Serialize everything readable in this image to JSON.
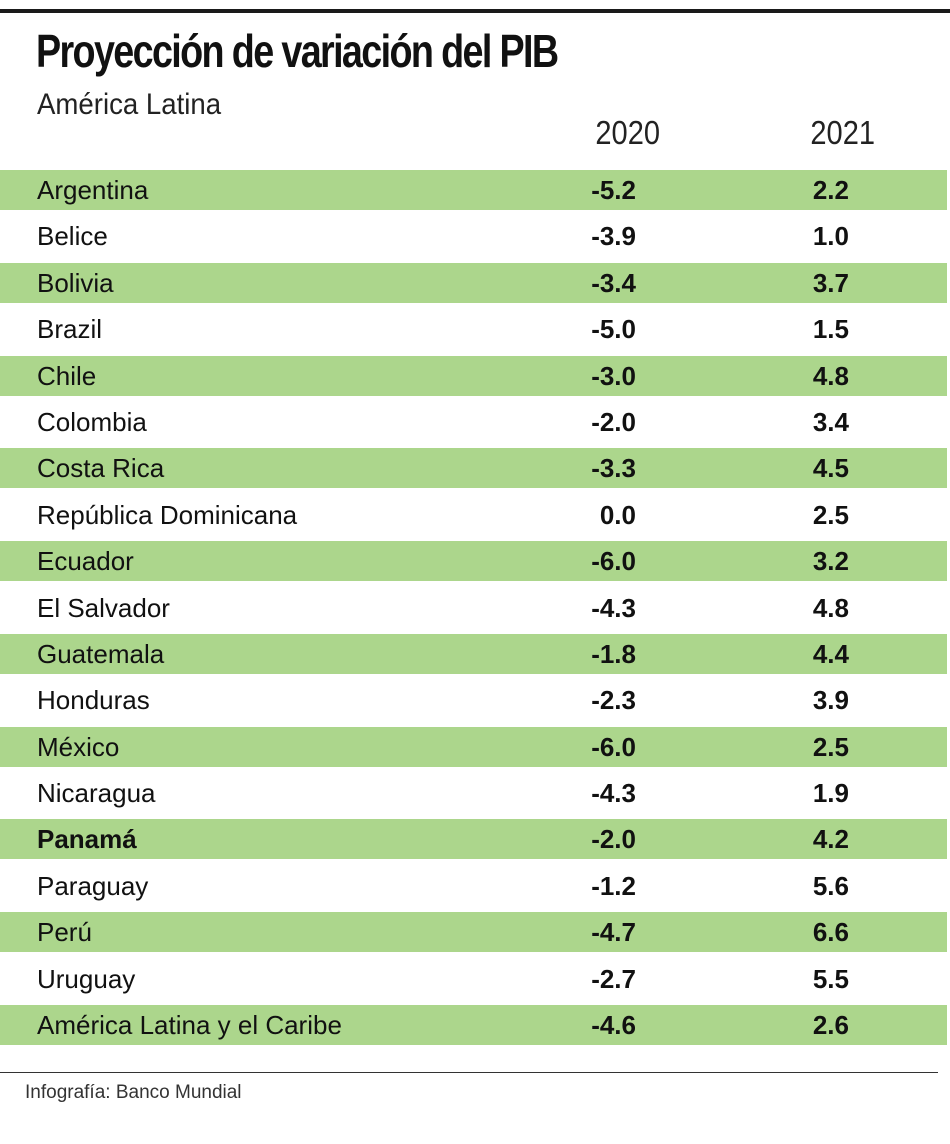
{
  "chart_data": {
    "type": "table",
    "title": "Proyección de variación del PIB",
    "subtitle": "América Latina",
    "columns": [
      "2020",
      "2021"
    ],
    "rows": [
      {
        "label": "Argentina",
        "values": [
          "-5.2",
          "2.2"
        ]
      },
      {
        "label": "Belice",
        "values": [
          "-3.9",
          "1.0"
        ]
      },
      {
        "label": "Bolivia",
        "values": [
          "-3.4",
          "3.7"
        ]
      },
      {
        "label": "Brazil",
        "values": [
          "-5.0",
          "1.5"
        ]
      },
      {
        "label": "Chile",
        "values": [
          "-3.0",
          "4.8"
        ]
      },
      {
        "label": "Colombia",
        "values": [
          "-2.0",
          "3.4"
        ]
      },
      {
        "label": "Costa Rica",
        "values": [
          "-3.3",
          "4.5"
        ]
      },
      {
        "label": "República Dominicana",
        "values": [
          "0.0",
          "2.5"
        ]
      },
      {
        "label": "Ecuador",
        "values": [
          "-6.0",
          "3.2"
        ]
      },
      {
        "label": "El Salvador",
        "values": [
          "-4.3",
          "4.8"
        ]
      },
      {
        "label": "Guatemala",
        "values": [
          "-1.8",
          "4.4"
        ]
      },
      {
        "label": "Honduras",
        "values": [
          "-2.3",
          "3.9"
        ]
      },
      {
        "label": "México",
        "values": [
          "-6.0",
          "2.5"
        ]
      },
      {
        "label": "Nicaragua",
        "values": [
          "-4.3",
          "1.9"
        ]
      },
      {
        "label": "Panamá",
        "values": [
          "-2.0",
          "4.2"
        ],
        "highlight": true
      },
      {
        "label": "Paraguay",
        "values": [
          "-1.2",
          "5.6"
        ]
      },
      {
        "label": "Perú",
        "values": [
          "-4.7",
          "6.6"
        ]
      },
      {
        "label": "Uruguay",
        "values": [
          "-2.7",
          "5.5"
        ]
      },
      {
        "label": "América Latina y el Caribe",
        "values": [
          "-4.6",
          "2.6"
        ]
      }
    ],
    "source": "Infografía: Banco Mundial",
    "colors": {
      "stripe": "#acd68c",
      "text": "#111111"
    }
  }
}
